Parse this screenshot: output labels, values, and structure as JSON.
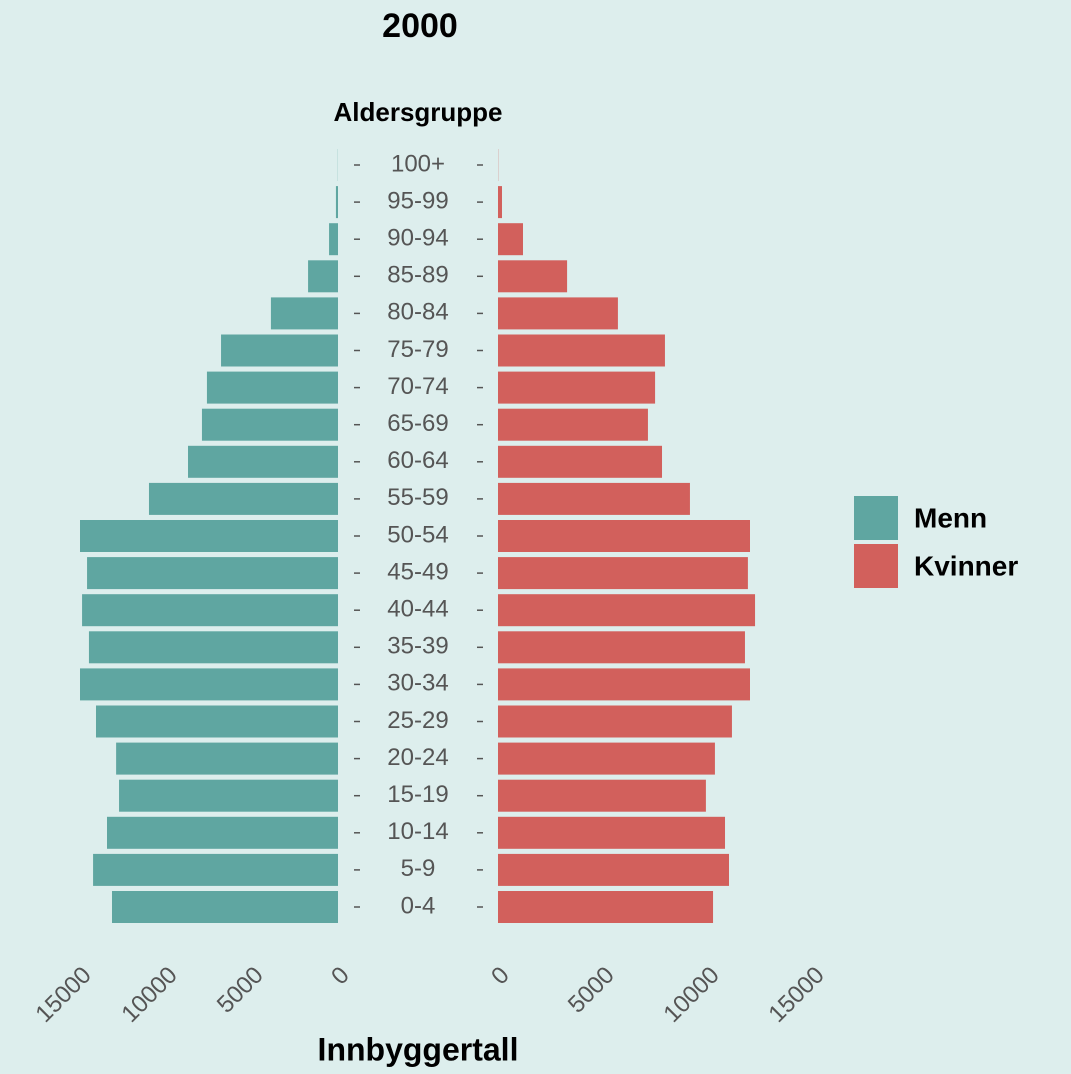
{
  "chart_data": {
    "type": "pyramid",
    "title": "2000",
    "y_label": "Aldersgruppe",
    "x_label": "Innbyggertall",
    "categories": [
      "0-4",
      "5-9",
      "10-14",
      "15-19",
      "20-24",
      "25-29",
      "30-34",
      "35-39",
      "40-44",
      "45-49",
      "50-54",
      "55-59",
      "60-64",
      "65-69",
      "70-74",
      "75-79",
      "80-84",
      "85-89",
      "90-94",
      "95-99",
      "100+"
    ],
    "series": [
      {
        "name": "Menn",
        "color": "#5fa6a1",
        "xlim": [
          0,
          15000
        ],
        "xticks": [
          0,
          5000,
          10000,
          15000
        ],
        "values": [
          13140,
          14240,
          13430,
          12730,
          12900,
          14070,
          15000,
          14480,
          14880,
          14590,
          15000,
          10990,
          8720,
          7910,
          7620,
          6800,
          3900,
          1740,
          520,
          120,
          10
        ]
      },
      {
        "name": "Kvinner",
        "color": "#d2605c",
        "xlim": [
          0,
          15000
        ],
        "xticks": [
          0,
          5000,
          10000,
          15000
        ],
        "values": [
          10240,
          11000,
          10810,
          9900,
          10330,
          11140,
          12000,
          11760,
          12240,
          11900,
          12000,
          9140,
          7810,
          7140,
          7480,
          7950,
          5710,
          3290,
          1190,
          190,
          10
        ]
      }
    ],
    "legend": "right"
  }
}
